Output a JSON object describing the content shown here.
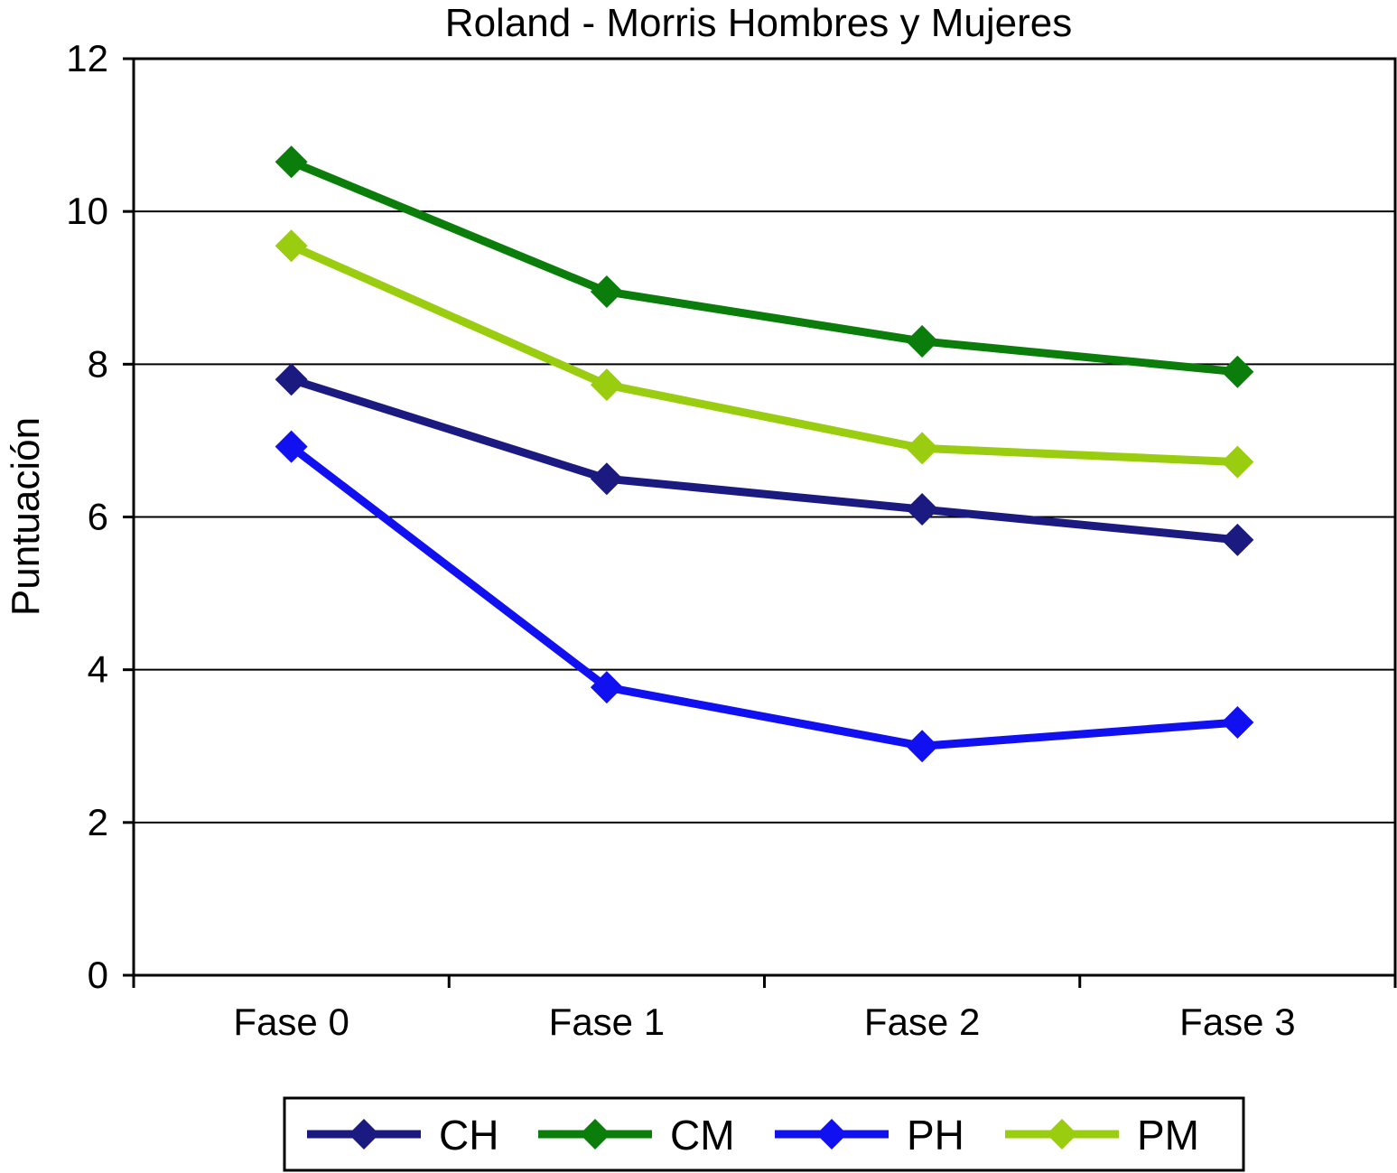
{
  "chart_data": {
    "type": "line",
    "title": "Roland - Morris Hombres y Mujeres",
    "xlabel": "",
    "ylabel": "Puntuación",
    "ylim": [
      0,
      12
    ],
    "yticks": [
      "0",
      "2",
      "4",
      "6",
      "8",
      "10",
      "12"
    ],
    "categories": [
      "Fase 0",
      "Fase 1",
      "Fase 2",
      "Fase 3"
    ],
    "grid": "horizontal",
    "legend": "bottom",
    "series": [
      {
        "name": "CH",
        "color": "#1a1a80",
        "marker": "diamond",
        "values": [
          7.8,
          6.5,
          6.1,
          5.7
        ]
      },
      {
        "name": "CM",
        "color": "#0a7d0a",
        "marker": "diamond",
        "values": [
          10.65,
          8.95,
          8.3,
          7.9
        ]
      },
      {
        "name": "PH",
        "color": "#1010f0",
        "marker": "diamond",
        "values": [
          6.92,
          3.77,
          3.0,
          3.31
        ]
      },
      {
        "name": "PM",
        "color": "#9acd0f",
        "marker": "diamond",
        "values": [
          9.55,
          7.73,
          6.9,
          6.72
        ]
      }
    ]
  }
}
